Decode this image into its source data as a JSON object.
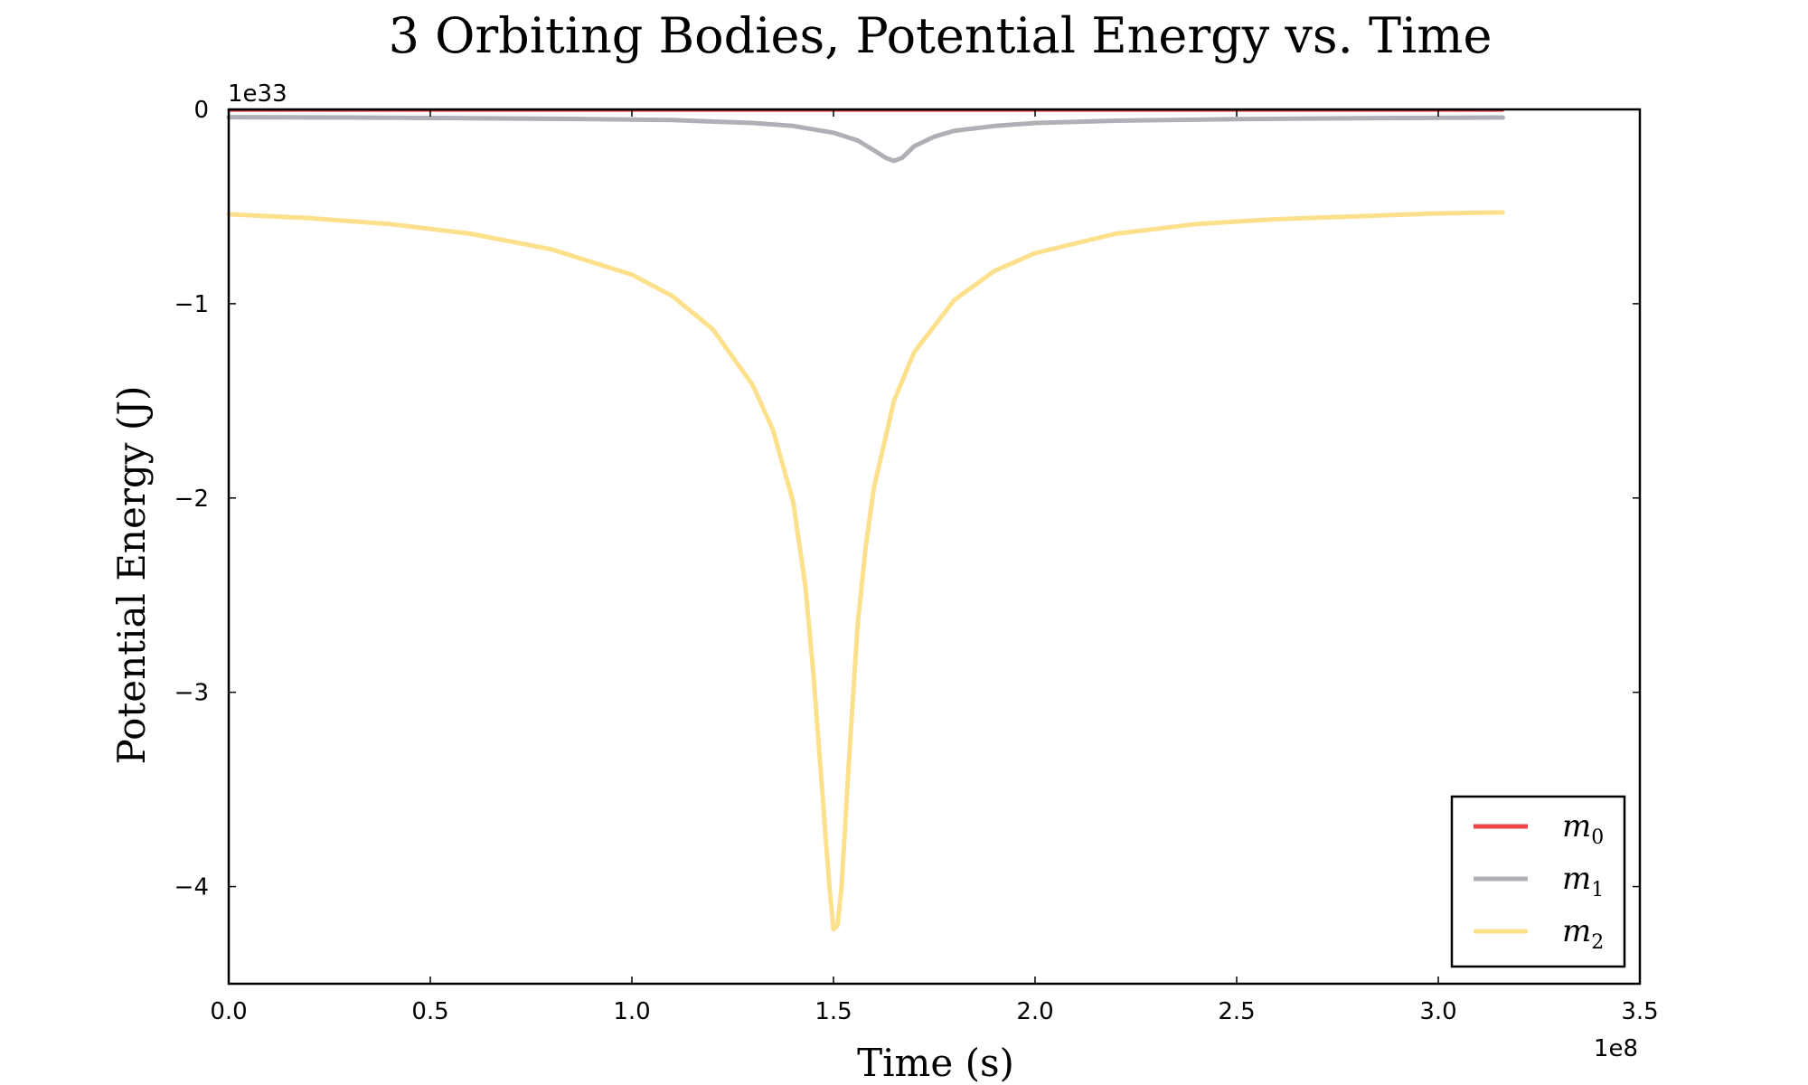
{
  "chart_data": {
    "type": "line",
    "title": "3 Orbiting Bodies, Potential Energy vs. Time",
    "xlabel": "Time (s)",
    "ylabel": "Potential Energy (J)",
    "x_offset_label": "1e8",
    "y_offset_label": "1e33",
    "xlim": [
      0,
      3.5
    ],
    "ylim": [
      -4.5,
      0
    ],
    "x_ticks": [
      0.0,
      0.5,
      1.0,
      1.5,
      2.0,
      2.5,
      3.0,
      3.5
    ],
    "x_tick_labels": [
      "0.0",
      "0.5",
      "1.0",
      "1.5",
      "2.0",
      "2.5",
      "3.0",
      "3.5"
    ],
    "y_ticks": [
      0,
      -1,
      -2,
      -3,
      -4
    ],
    "y_tick_labels": [
      "0",
      "−1",
      "−2",
      "−3",
      "−4"
    ],
    "grid": false,
    "legend_position": "bottom-right",
    "series": [
      {
        "name": "m",
        "subscript": "0",
        "color": "#ee4444",
        "x": [
          0.0,
          0.5,
          1.0,
          1.5,
          2.0,
          2.5,
          3.16
        ],
        "y": [
          -0.005,
          -0.005,
          -0.005,
          -0.005,
          -0.005,
          -0.005,
          -0.005
        ]
      },
      {
        "name": "m",
        "subscript": "1",
        "color": "#b0afb6",
        "x": [
          0.0,
          0.3,
          0.6,
          0.9,
          1.1,
          1.3,
          1.4,
          1.5,
          1.56,
          1.6,
          1.63,
          1.65,
          1.67,
          1.7,
          1.75,
          1.8,
          1.9,
          2.0,
          2.2,
          2.5,
          2.8,
          3.16
        ],
        "y": [
          -0.04,
          -0.042,
          -0.045,
          -0.05,
          -0.055,
          -0.07,
          -0.085,
          -0.12,
          -0.16,
          -0.21,
          -0.25,
          -0.265,
          -0.25,
          -0.19,
          -0.14,
          -0.11,
          -0.085,
          -0.07,
          -0.058,
          -0.05,
          -0.045,
          -0.042
        ]
      },
      {
        "name": "m",
        "subscript": "2",
        "color": "#fde08c",
        "x": [
          0.0,
          0.2,
          0.4,
          0.6,
          0.8,
          1.0,
          1.1,
          1.2,
          1.3,
          1.35,
          1.4,
          1.43,
          1.45,
          1.47,
          1.49,
          1.5,
          1.51,
          1.52,
          1.54,
          1.56,
          1.58,
          1.6,
          1.65,
          1.7,
          1.8,
          1.9,
          2.0,
          2.2,
          2.4,
          2.6,
          2.8,
          3.0,
          3.16
        ],
        "y": [
          -0.54,
          -0.56,
          -0.59,
          -0.64,
          -0.72,
          -0.85,
          -0.96,
          -1.13,
          -1.42,
          -1.65,
          -2.02,
          -2.45,
          -2.9,
          -3.45,
          -4.0,
          -4.22,
          -4.2,
          -4.0,
          -3.3,
          -2.65,
          -2.25,
          -1.95,
          -1.5,
          -1.25,
          -0.98,
          -0.83,
          -0.74,
          -0.64,
          -0.59,
          -0.565,
          -0.55,
          -0.535,
          -0.53
        ]
      }
    ]
  }
}
